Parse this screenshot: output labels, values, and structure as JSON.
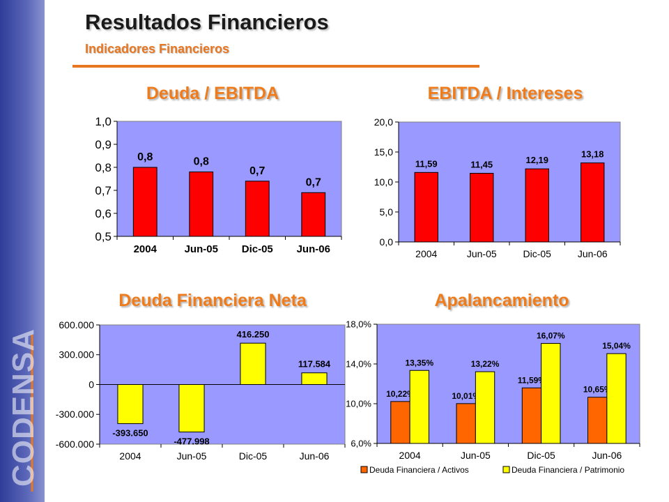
{
  "header": {
    "title": "Resultados Financieros",
    "subtitle": "Indicadores Financieros"
  },
  "logo": {
    "text": "CODENSA"
  },
  "colors": {
    "accent": "#e87722",
    "plot_bg": "#9999ff",
    "red_bar": "#ff0000",
    "yellow_bar": "#ffff00",
    "orange_bar": "#ff6600"
  },
  "chart_data": [
    {
      "id": "deuda_ebitda",
      "type": "bar",
      "title": "Deuda / EBITDA",
      "categories": [
        "2004",
        "Jun-05",
        "Dic-05",
        "Jun-06"
      ],
      "series": [
        {
          "values": [
            0.8,
            0.78,
            0.74,
            0.69
          ],
          "labels": [
            "0,8",
            "0,8",
            "0,7",
            "0,7"
          ]
        }
      ],
      "ylim": [
        0.5,
        1.0
      ],
      "yticks": [
        "1,0",
        "0,9",
        "0,8",
        "0,7",
        "0,6",
        "0,5"
      ],
      "grid": false
    },
    {
      "id": "ebitda_intereses",
      "type": "bar",
      "title": "EBITDA / Intereses",
      "categories": [
        "2004",
        "Jun-05",
        "Dic-05",
        "Jun-06"
      ],
      "series": [
        {
          "values": [
            11.59,
            11.45,
            12.19,
            13.18
          ],
          "labels": [
            "11,59",
            "11,45",
            "12,19",
            "13,18"
          ]
        }
      ],
      "ylim": [
        0,
        20
      ],
      "yticks": [
        "20,0",
        "15,0",
        "10,0",
        "5,0",
        "0,0"
      ],
      "grid": false
    },
    {
      "id": "deuda_neta",
      "type": "bar",
      "title": "Deuda Financiera Neta",
      "categories": [
        "2004",
        "Jun-05",
        "Dic-05",
        "Jun-06"
      ],
      "series": [
        {
          "values": [
            -393650,
            -477998,
            416250,
            117584
          ],
          "labels": [
            "-393.650",
            "-477.998",
            "416.250",
            "117.584"
          ]
        }
      ],
      "ylim": [
        -600000,
        600000
      ],
      "yticks": [
        "600.000",
        "300.000",
        "0",
        "-300.000",
        "-600.000"
      ],
      "grid": false
    },
    {
      "id": "apalancamiento",
      "type": "bar",
      "title": "Apalancamiento",
      "categories": [
        "2004",
        "Jun-05",
        "Dic-05",
        "Jun-06"
      ],
      "series": [
        {
          "name": "Deuda Financiera / Activos",
          "values": [
            10.22,
            10.01,
            11.59,
            10.65
          ],
          "labels": [
            "10,22%",
            "10,01%",
            "11,59%",
            "10,65%"
          ]
        },
        {
          "name": "Deuda Financiera / Patrimonio",
          "values": [
            13.35,
            13.22,
            16.07,
            15.04
          ],
          "labels": [
            "13,35%",
            "13,22%",
            "16,07%",
            "15,04%"
          ]
        }
      ],
      "ylim": [
        6,
        18
      ],
      "yticks": [
        "18,0%",
        "14,0%",
        "10,0%",
        "6,0%"
      ],
      "legend": "bottom",
      "grid": false
    }
  ]
}
